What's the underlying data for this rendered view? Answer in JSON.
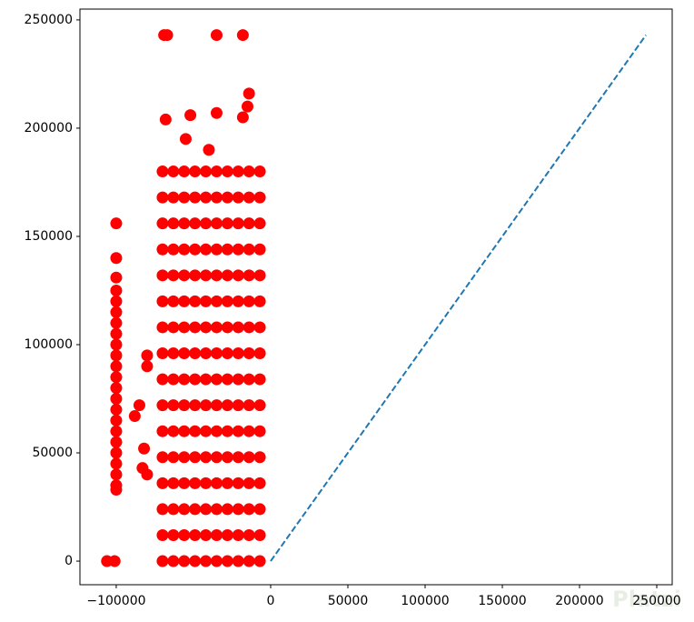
{
  "chart_data": {
    "type": "scatter",
    "xlim": [
      -123500,
      260000
    ],
    "ylim": [
      -10900,
      255000
    ],
    "xticks": [
      {
        "value": -100000,
        "label": "−100000"
      },
      0,
      50000,
      100000,
      150000,
      200000,
      250000
    ],
    "yticks": [
      0,
      50000,
      100000,
      150000,
      200000,
      250000
    ],
    "watermark": "Platzi",
    "points": {
      "color": "#ff0000",
      "x": [
        -70000,
        -70000,
        -70000,
        -70000,
        -70000,
        -70000,
        -70000,
        -70000,
        -70000,
        -70000,
        -70000,
        -70000,
        -70000,
        -70000,
        -70000,
        -70000,
        -63000,
        -63000,
        -63000,
        -63000,
        -63000,
        -63000,
        -63000,
        -63000,
        -63000,
        -63000,
        -63000,
        -63000,
        -63000,
        -63000,
        -63000,
        -63000,
        -56000,
        -56000,
        -56000,
        -56000,
        -56000,
        -56000,
        -56000,
        -56000,
        -56000,
        -56000,
        -56000,
        -56000,
        -56000,
        -56000,
        -56000,
        -56000,
        -49000,
        -49000,
        -49000,
        -49000,
        -49000,
        -49000,
        -49000,
        -49000,
        -49000,
        -49000,
        -49000,
        -49000,
        -49000,
        -49000,
        -49000,
        -49000,
        -42000,
        -42000,
        -42000,
        -42000,
        -42000,
        -42000,
        -42000,
        -42000,
        -42000,
        -42000,
        -42000,
        -42000,
        -42000,
        -42000,
        -42000,
        -42000,
        -35000,
        -35000,
        -35000,
        -35000,
        -35000,
        -35000,
        -35000,
        -35000,
        -35000,
        -35000,
        -35000,
        -35000,
        -35000,
        -35000,
        -35000,
        -35000,
        -28000,
        -28000,
        -28000,
        -28000,
        -28000,
        -28000,
        -28000,
        -28000,
        -28000,
        -28000,
        -28000,
        -28000,
        -28000,
        -28000,
        -28000,
        -28000,
        -21000,
        -21000,
        -21000,
        -21000,
        -21000,
        -21000,
        -21000,
        -21000,
        -21000,
        -21000,
        -21000,
        -21000,
        -21000,
        -21000,
        -21000,
        -21000,
        -14000,
        -14000,
        -14000,
        -14000,
        -14000,
        -14000,
        -14000,
        -14000,
        -14000,
        -14000,
        -14000,
        -14000,
        -14000,
        -14000,
        -14000,
        -14000,
        -7000,
        -7000,
        -7000,
        -7000,
        -7000,
        -7000,
        -7000,
        -7000,
        -7000,
        -7000,
        -7000,
        -7000,
        -7000,
        -7000,
        -7000,
        -7000,
        -100000,
        -100000,
        -100000,
        -100000,
        -100000,
        -100000,
        -100000,
        -100000,
        -100000,
        -100000,
        -100000,
        -100000,
        -100000,
        -100000,
        -100000,
        -100000,
        -100000,
        -100000,
        -100000,
        -100000,
        -100000,
        -100000,
        -100000,
        -106000,
        -101000,
        -88000,
        -85000,
        -80000,
        -80000,
        -82000,
        -80000,
        -83000,
        -69000,
        -67000,
        -35000,
        -18000,
        -14000,
        -15000,
        -68000,
        -52000,
        -35000,
        -18000,
        -40000,
        -55000
      ],
      "y": [
        0,
        12000,
        24000,
        36000,
        48000,
        60000,
        72000,
        84000,
        96000,
        108000,
        120000,
        132000,
        144000,
        156000,
        168000,
        180000,
        0,
        12000,
        24000,
        36000,
        48000,
        60000,
        72000,
        84000,
        96000,
        108000,
        120000,
        132000,
        144000,
        156000,
        168000,
        180000,
        0,
        12000,
        24000,
        36000,
        48000,
        60000,
        72000,
        84000,
        96000,
        108000,
        120000,
        132000,
        144000,
        156000,
        168000,
        180000,
        0,
        12000,
        24000,
        36000,
        48000,
        60000,
        72000,
        84000,
        96000,
        108000,
        120000,
        132000,
        144000,
        156000,
        168000,
        180000,
        0,
        12000,
        24000,
        36000,
        48000,
        60000,
        72000,
        84000,
        96000,
        108000,
        120000,
        132000,
        144000,
        156000,
        168000,
        180000,
        0,
        12000,
        24000,
        36000,
        48000,
        60000,
        72000,
        84000,
        96000,
        108000,
        120000,
        132000,
        144000,
        156000,
        168000,
        180000,
        0,
        12000,
        24000,
        36000,
        48000,
        60000,
        72000,
        84000,
        96000,
        108000,
        120000,
        132000,
        144000,
        156000,
        168000,
        180000,
        0,
        12000,
        24000,
        36000,
        48000,
        60000,
        72000,
        84000,
        96000,
        108000,
        120000,
        132000,
        144000,
        156000,
        168000,
        180000,
        0,
        12000,
        24000,
        36000,
        48000,
        60000,
        72000,
        84000,
        96000,
        108000,
        120000,
        132000,
        144000,
        156000,
        168000,
        180000,
        0,
        12000,
        24000,
        36000,
        48000,
        60000,
        72000,
        84000,
        96000,
        108000,
        120000,
        132000,
        144000,
        156000,
        168000,
        180000,
        156000,
        140000,
        131000,
        125000,
        120000,
        115000,
        110000,
        105000,
        100000,
        95000,
        90000,
        85000,
        80000,
        75000,
        70000,
        65000,
        60000,
        55000,
        50000,
        45000,
        40000,
        35000,
        33000,
        0,
        0,
        67000,
        72000,
        95000,
        90000,
        52000,
        40000,
        43000,
        243000,
        243000,
        243000,
        243000,
        216000,
        210000,
        204000,
        206000,
        207000,
        205000,
        190000,
        195000
      ]
    },
    "line": {
      "x": [
        0,
        243000
      ],
      "y": [
        0,
        243000
      ],
      "color": "#1f77b4",
      "style": "dashed"
    }
  }
}
